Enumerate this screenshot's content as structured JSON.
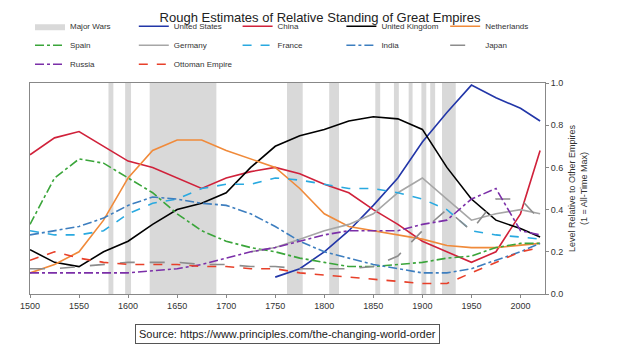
{
  "chart_data": {
    "type": "line",
    "title": "Rough Estimates of Relative Standing of Great Empires",
    "ylabel": [
      "Level Relative to Other Empires",
      "(1 = All-Time Max)"
    ],
    "source": "Source: https://www.principles.com/the-changing-world-order",
    "x": [
      1500,
      1525,
      1550,
      1575,
      1600,
      1625,
      1650,
      1675,
      1700,
      1725,
      1750,
      1775,
      1800,
      1825,
      1850,
      1875,
      1900,
      1925,
      1950,
      1975,
      2000,
      2020
    ],
    "xlim": [
      1500,
      2025
    ],
    "xticks": [
      1500,
      1550,
      1600,
      1650,
      1700,
      1750,
      1800,
      1850,
      1900,
      1950,
      2000
    ],
    "ylim": [
      0,
      1
    ],
    "yticks": [
      {
        "value": 0,
        "label": "0.0"
      },
      {
        "value": 0.2,
        "label": "0.2"
      },
      {
        "value": 0.4,
        "label": "0.4"
      },
      {
        "value": 0.6,
        "label": "0.6"
      },
      {
        "value": 0.8,
        "label": "0.8"
      },
      {
        "value": 1,
        "label": "1.0"
      }
    ],
    "grid": false,
    "legend": "top",
    "bands": {
      "name": "Major Wars",
      "color": "#d9d9d9",
      "ranges": [
        [
          1580,
          1585
        ],
        [
          1597,
          1603
        ],
        [
          1622,
          1690
        ],
        [
          1762,
          1778
        ],
        [
          1805,
          1815
        ],
        [
          1852,
          1857
        ],
        [
          1871,
          1876
        ],
        [
          1886,
          1890
        ],
        [
          1899,
          1904
        ],
        [
          1908,
          1913
        ],
        [
          1920,
          1934
        ]
      ]
    },
    "series": [
      {
        "name": "United States",
        "color": "#2236a8",
        "line_style": "solid",
        "values": [
          null,
          null,
          null,
          null,
          null,
          null,
          null,
          null,
          null,
          null,
          0.08,
          0.12,
          0.2,
          0.3,
          0.42,
          0.55,
          0.72,
          0.86,
          0.99,
          0.93,
          0.88,
          0.82
        ]
      },
      {
        "name": "China",
        "color": "#d0213a",
        "line_style": "solid",
        "values": [
          0.66,
          0.74,
          0.77,
          0.7,
          0.63,
          0.6,
          0.55,
          0.5,
          0.55,
          0.58,
          0.6,
          0.57,
          0.52,
          0.48,
          0.4,
          0.33,
          0.25,
          0.2,
          0.15,
          0.2,
          0.38,
          0.68
        ]
      },
      {
        "name": "United Kingdom",
        "color": "#000000",
        "line_style": "solid",
        "values": [
          0.21,
          0.15,
          0.13,
          0.2,
          0.25,
          0.33,
          0.4,
          0.43,
          0.48,
          0.6,
          0.7,
          0.75,
          0.78,
          0.82,
          0.84,
          0.83,
          0.78,
          0.6,
          0.45,
          0.35,
          0.31,
          0.27
        ]
      },
      {
        "name": "Netherlands",
        "color": "#f08a3a",
        "line_style": "solid",
        "values": [
          0.1,
          0.14,
          0.2,
          0.35,
          0.55,
          0.68,
          0.73,
          0.73,
          0.68,
          0.64,
          0.6,
          0.5,
          0.38,
          0.32,
          0.3,
          0.28,
          0.26,
          0.23,
          0.22,
          0.22,
          0.23,
          0.24
        ]
      },
      {
        "name": "Spain",
        "color": "#3aa53a",
        "line_style": "dashdot",
        "values": [
          0.33,
          0.55,
          0.64,
          0.62,
          0.55,
          0.48,
          0.38,
          0.3,
          0.25,
          0.22,
          0.2,
          0.17,
          0.15,
          0.13,
          0.13,
          0.14,
          0.15,
          0.17,
          0.18,
          0.22,
          0.24,
          0.24
        ]
      },
      {
        "name": "Germany",
        "color": "#a6a6a6",
        "line_style": "solid",
        "values": [
          null,
          null,
          null,
          null,
          null,
          null,
          null,
          null,
          null,
          0.2,
          0.22,
          0.26,
          0.3,
          0.33,
          0.38,
          0.48,
          0.55,
          0.45,
          0.35,
          0.38,
          0.4,
          0.38
        ]
      },
      {
        "name": "France",
        "color": "#29a9e0",
        "line_style": "dash",
        "values": [
          0.3,
          0.28,
          0.28,
          0.3,
          0.38,
          0.43,
          0.45,
          0.5,
          0.52,
          0.52,
          0.55,
          0.54,
          0.52,
          0.5,
          0.5,
          0.48,
          0.45,
          0.4,
          0.3,
          0.28,
          0.27,
          0.26
        ]
      },
      {
        "name": "India",
        "color": "#3d7ebf",
        "line_style": "dashdot",
        "values": [
          0.28,
          0.3,
          0.32,
          0.36,
          0.42,
          0.46,
          0.45,
          0.43,
          0.42,
          0.38,
          0.32,
          0.25,
          0.2,
          0.17,
          0.14,
          0.12,
          0.1,
          0.1,
          0.12,
          0.16,
          0.2,
          0.24
        ]
      },
      {
        "name": "Japan",
        "color": "#8c8c8c",
        "line_style": "longdash",
        "values": [
          0.12,
          0.12,
          0.13,
          0.14,
          0.15,
          0.15,
          0.15,
          0.14,
          0.14,
          0.13,
          0.13,
          0.12,
          0.12,
          0.12,
          0.13,
          0.18,
          0.3,
          0.4,
          0.3,
          0.45,
          0.45,
          0.35
        ]
      },
      {
        "name": "Russia",
        "color": "#7b2fa8",
        "line_style": "dashdot",
        "values": [
          0.1,
          0.1,
          0.1,
          0.1,
          0.1,
          0.11,
          0.12,
          0.14,
          0.17,
          0.2,
          0.22,
          0.25,
          0.28,
          0.3,
          0.3,
          0.3,
          0.33,
          0.35,
          0.45,
          0.5,
          0.3,
          0.28
        ]
      },
      {
        "name": "Ottoman Empire",
        "color": "#e8402a",
        "line_style": "dash",
        "values": [
          0.16,
          0.2,
          0.17,
          0.15,
          0.14,
          0.14,
          0.14,
          0.13,
          0.13,
          0.12,
          0.12,
          0.1,
          0.09,
          0.08,
          0.07,
          0.06,
          0.05,
          0.05,
          0.1,
          0.15,
          0.2,
          0.22
        ]
      }
    ]
  }
}
